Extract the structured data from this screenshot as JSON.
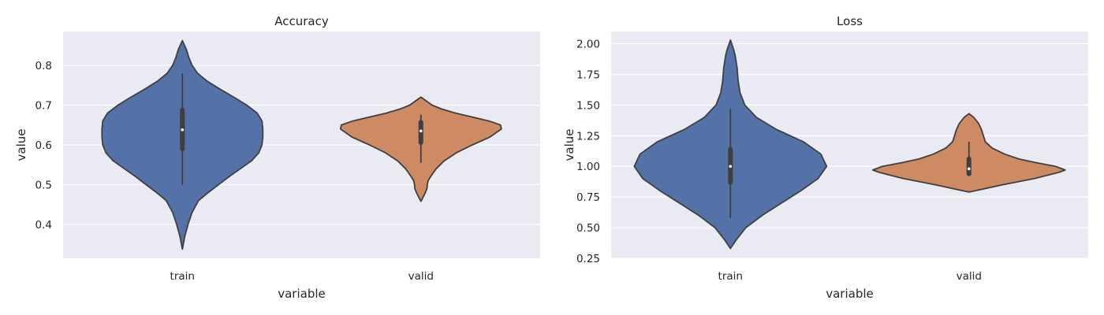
{
  "chart_data": [
    {
      "type": "violin",
      "title": "Accuracy",
      "xlabel": "variable",
      "ylabel": "value",
      "ylim": [
        0.315,
        0.885
      ],
      "yticks": [
        0.4,
        0.5,
        0.6,
        0.7,
        0.8
      ],
      "yticklabels": [
        "0.4",
        "0.5",
        "0.6",
        "0.7",
        "0.8"
      ],
      "grid": true,
      "categories": [
        "train",
        "valid"
      ],
      "series": [
        {
          "category": "train",
          "color": "#5572a8",
          "range": [
            0.338,
            0.862
          ],
          "whisker": [
            0.5,
            0.78
          ],
          "iqr": [
            0.59,
            0.688
          ],
          "median": 0.638,
          "density": [
            [
              0.338,
              0.0
            ],
            [
              0.37,
              0.03
            ],
            [
              0.4,
              0.07
            ],
            [
              0.43,
              0.12
            ],
            [
              0.46,
              0.2
            ],
            [
              0.48,
              0.32
            ],
            [
              0.5,
              0.45
            ],
            [
              0.52,
              0.58
            ],
            [
              0.54,
              0.72
            ],
            [
              0.56,
              0.86
            ],
            [
              0.58,
              0.95
            ],
            [
              0.6,
              0.99
            ],
            [
              0.62,
              1.0
            ],
            [
              0.64,
              1.0
            ],
            [
              0.66,
              0.99
            ],
            [
              0.68,
              0.93
            ],
            [
              0.7,
              0.8
            ],
            [
              0.72,
              0.64
            ],
            [
              0.74,
              0.47
            ],
            [
              0.76,
              0.31
            ],
            [
              0.78,
              0.19
            ],
            [
              0.8,
              0.12
            ],
            [
              0.82,
              0.08
            ],
            [
              0.84,
              0.05
            ],
            [
              0.862,
              0.0
            ]
          ]
        },
        {
          "category": "valid",
          "color": "#cd8a63",
          "range": [
            0.458,
            0.72
          ],
          "whisker": [
            0.555,
            0.676
          ],
          "iqr": [
            0.606,
            0.657
          ],
          "median": 0.635,
          "density": [
            [
              0.458,
              0.0
            ],
            [
              0.47,
              0.03
            ],
            [
              0.48,
              0.055
            ],
            [
              0.49,
              0.075
            ],
            [
              0.5,
              0.08
            ],
            [
              0.51,
              0.09
            ],
            [
              0.52,
              0.12
            ],
            [
              0.54,
              0.19
            ],
            [
              0.56,
              0.29
            ],
            [
              0.58,
              0.44
            ],
            [
              0.6,
              0.64
            ],
            [
              0.62,
              0.86
            ],
            [
              0.64,
              1.0
            ],
            [
              0.65,
              0.99
            ],
            [
              0.66,
              0.85
            ],
            [
              0.67,
              0.64
            ],
            [
              0.68,
              0.43
            ],
            [
              0.69,
              0.26
            ],
            [
              0.7,
              0.14
            ],
            [
              0.71,
              0.07
            ],
            [
              0.72,
              0.0
            ]
          ]
        }
      ]
    },
    {
      "type": "violin",
      "title": "Loss",
      "xlabel": "variable",
      "ylabel": "value",
      "ylim": [
        0.25,
        2.1
      ],
      "yticks": [
        0.25,
        0.5,
        0.75,
        1.0,
        1.25,
        1.5,
        1.75,
        2.0
      ],
      "yticklabels": [
        "0.25",
        "0.50",
        "0.75",
        "1.00",
        "1.25",
        "1.50",
        "1.75",
        "2.00"
      ],
      "grid": true,
      "categories": [
        "train",
        "valid"
      ],
      "series": [
        {
          "category": "train",
          "color": "#5572a8",
          "range": [
            0.33,
            2.03
          ],
          "whisker": [
            0.58,
            1.47
          ],
          "iqr": [
            0.87,
            1.14
          ],
          "median": 1.0,
          "density": [
            [
              0.33,
              0.0
            ],
            [
              0.4,
              0.06
            ],
            [
              0.5,
              0.16
            ],
            [
              0.6,
              0.33
            ],
            [
              0.7,
              0.53
            ],
            [
              0.8,
              0.73
            ],
            [
              0.9,
              0.91
            ],
            [
              1.0,
              1.0
            ],
            [
              1.1,
              0.94
            ],
            [
              1.2,
              0.76
            ],
            [
              1.3,
              0.48
            ],
            [
              1.4,
              0.27
            ],
            [
              1.5,
              0.15
            ],
            [
              1.6,
              0.1
            ],
            [
              1.7,
              0.08
            ],
            [
              1.8,
              0.07
            ],
            [
              1.9,
              0.05
            ],
            [
              1.95,
              0.035
            ],
            [
              2.03,
              0.0
            ]
          ]
        },
        {
          "category": "valid",
          "color": "#cd8a63",
          "range": [
            0.79,
            1.43
          ],
          "whisker": [
            0.92,
            1.2
          ],
          "iqr": [
            0.94,
            1.06
          ],
          "median": 0.98,
          "density": [
            [
              0.79,
              0.0
            ],
            [
              0.81,
              0.12
            ],
            [
              0.85,
              0.35
            ],
            [
              0.9,
              0.68
            ],
            [
              0.95,
              0.93
            ],
            [
              0.97,
              1.0
            ],
            [
              1.0,
              0.9
            ],
            [
              1.03,
              0.7
            ],
            [
              1.06,
              0.52
            ],
            [
              1.1,
              0.37
            ],
            [
              1.15,
              0.24
            ],
            [
              1.2,
              0.17
            ],
            [
              1.25,
              0.15
            ],
            [
              1.3,
              0.13
            ],
            [
              1.35,
              0.1
            ],
            [
              1.4,
              0.05
            ],
            [
              1.43,
              0.0
            ]
          ]
        }
      ]
    }
  ]
}
